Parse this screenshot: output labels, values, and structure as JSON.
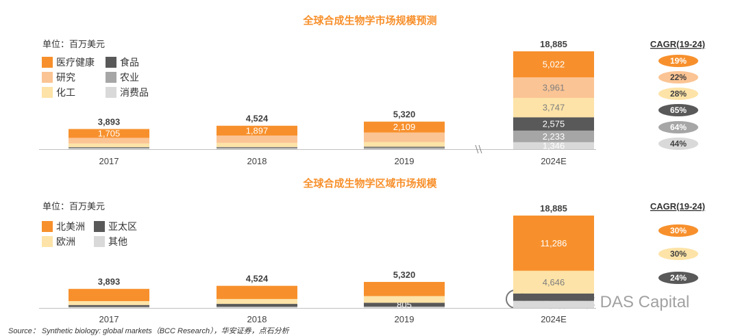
{
  "source": "Source： Synthetic biology: global markets（BCC Research），华安证券，点石分析",
  "watermark": "点石资本 DAS Capital",
  "chart_data": [
    {
      "type": "bar",
      "stacked": true,
      "title": "全球合成生物学市场规模预测",
      "unit_label": "单位：百万美元",
      "categories": [
        "2017",
        "2018",
        "2019",
        "2024E"
      ],
      "axis_break_before": "2024E",
      "totals": [
        "3,893",
        "4,524",
        "5,320",
        "18,885"
      ],
      "series": [
        {
          "name": "消费品",
          "values": [
            100,
            80,
            70,
            1346
          ],
          "labels": [
            "",
            "",
            "",
            "1,346"
          ],
          "color": "#d9d9d9",
          "label_color": "#ffffff"
        },
        {
          "name": "农业",
          "values": [
            200,
            220,
            250,
            2233
          ],
          "labels": [
            "",
            "",
            "",
            "2,233"
          ],
          "color": "#a6a6a6",
          "label_color": "#ffffff"
        },
        {
          "name": "食品",
          "values": [
            100,
            120,
            150,
            2575
          ],
          "labels": [
            "",
            "",
            "",
            "2,575"
          ],
          "color": "#595959",
          "label_color": "#ffffff"
        },
        {
          "name": "化工",
          "values": [
            700,
            800,
            900,
            3747
          ],
          "labels": [
            "",
            "",
            "",
            "3,747"
          ],
          "color": "#fde3a7",
          "label_color": "#7f7f7f"
        },
        {
          "name": "研究",
          "values": [
            1088,
            1407,
            1841,
            3961
          ],
          "labels": [
            "",
            "",
            "",
            "3,961"
          ],
          "color": "#fbc494",
          "label_color": "#7f7f7f"
        },
        {
          "name": "医疗健康",
          "values": [
            1705,
            1897,
            2109,
            5022
          ],
          "labels": [
            "1,705",
            "1,897",
            "2,109",
            "5,022"
          ],
          "color": "#f7902c",
          "label_color": "#ffffff"
        }
      ],
      "legend": [
        {
          "name": "医疗健康",
          "color": "#f7902c"
        },
        {
          "name": "食品",
          "color": "#595959"
        },
        {
          "name": "研究",
          "color": "#fbc494"
        },
        {
          "name": "农业",
          "color": "#a6a6a6"
        },
        {
          "name": "化工",
          "color": "#fde3a7"
        },
        {
          "name": "消费品",
          "color": "#d9d9d9"
        }
      ],
      "cagr_header": "CAGR(19-24)",
      "cagr": [
        {
          "series": "医疗健康",
          "value": "19%",
          "color": "#f7902c",
          "text_color": "#ffffff"
        },
        {
          "series": "研究",
          "value": "22%",
          "color": "#fbc494",
          "text_color": "#404040"
        },
        {
          "series": "化工",
          "value": "28%",
          "color": "#fde3a7",
          "text_color": "#404040"
        },
        {
          "series": "食品",
          "value": "65%",
          "color": "#595959",
          "text_color": "#ffffff"
        },
        {
          "series": "农业",
          "value": "64%",
          "color": "#a6a6a6",
          "text_color": "#ffffff"
        },
        {
          "series": "消费品",
          "value": "44%",
          "color": "#d9d9d9",
          "text_color": "#404040"
        }
      ]
    },
    {
      "type": "bar",
      "stacked": true,
      "title": "全球合成生物学区域市场规模",
      "unit_label": "单位：百万美元",
      "categories": [
        "2017",
        "2018",
        "2019",
        "2024E"
      ],
      "totals": [
        "3,893",
        "4,524",
        "5,320",
        "18,885"
      ],
      "series": [
        {
          "name": "其他",
          "values": [
            200,
            230,
            250,
            1450
          ],
          "labels": [
            "",
            "",
            "",
            ""
          ],
          "color": "#d9d9d9",
          "label_color": "#ffffff"
        },
        {
          "name": "亚太区",
          "values": [
            400,
            600,
            805,
            1503
          ],
          "labels": [
            "",
            "",
            "805",
            ""
          ],
          "color": "#595959",
          "label_color": "#ffffff"
        },
        {
          "name": "欧洲",
          "values": [
            800,
            1000,
            1365,
            4646
          ],
          "labels": [
            "",
            "",
            "",
            "4,646"
          ],
          "color": "#fde3a7",
          "label_color": "#7f7f7f"
        },
        {
          "name": "北美洲",
          "values": [
            2493,
            2694,
            2900,
            11286
          ],
          "labels": [
            "",
            "",
            "",
            "11,286"
          ],
          "color": "#f7902c",
          "label_color": "#ffffff"
        }
      ],
      "legend": [
        {
          "name": "北美洲",
          "color": "#f7902c"
        },
        {
          "name": "亚太区",
          "color": "#595959"
        },
        {
          "name": "欧洲",
          "color": "#fde3a7"
        },
        {
          "name": "其他",
          "color": "#d9d9d9"
        }
      ],
      "cagr_header": "CAGR(19-24)",
      "cagr": [
        {
          "series": "北美洲",
          "value": "30%",
          "color": "#f7902c",
          "text_color": "#ffffff"
        },
        {
          "series": "欧洲",
          "value": "30%",
          "color": "#fde3a7",
          "text_color": "#404040"
        },
        {
          "series": "亚太区",
          "value": "24%",
          "color": "#595959",
          "text_color": "#ffffff"
        }
      ]
    }
  ]
}
